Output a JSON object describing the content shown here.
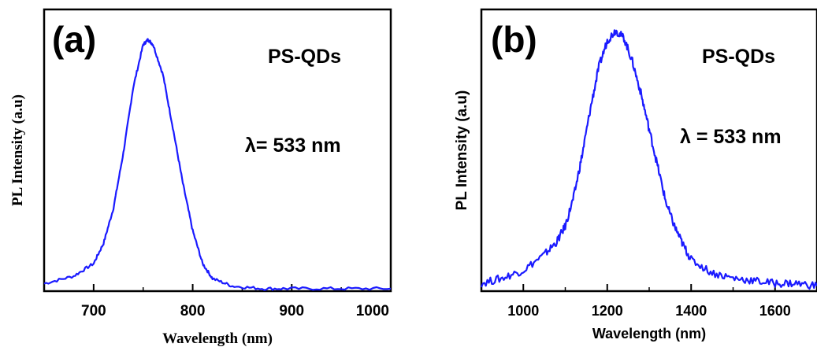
{
  "chart_data": [
    {
      "type": "line",
      "panel_label": "(a)",
      "sample_label": "PS-QDs",
      "excitation_label": "λ= 533 nm",
      "xlabel": "Wavelength (nm)",
      "ylabel": "PL Intensity (a.u)",
      "xlim": [
        650,
        1000
      ],
      "ylim": [
        0,
        1.12
      ],
      "x_ticks": [
        700,
        800,
        900,
        1000
      ],
      "x_tick_labels": [
        "700",
        "800",
        "900",
        "1000"
      ],
      "y_ticks_labeled": false,
      "grid": false,
      "line_color": "#1a1aff",
      "series": [
        {
          "x": [
            650,
            680,
            700,
            710,
            720,
            730,
            740,
            750,
            755,
            760,
            770,
            780,
            790,
            800,
            810,
            820,
            840,
            870,
            900,
            950,
            1000
          ],
          "values": [
            0.03,
            0.06,
            0.11,
            0.19,
            0.33,
            0.55,
            0.81,
            0.98,
            1.0,
            0.98,
            0.86,
            0.65,
            0.43,
            0.24,
            0.11,
            0.05,
            0.02,
            0.01,
            0.01,
            0.01,
            0.01
          ]
        }
      ]
    },
    {
      "type": "line",
      "panel_label": "(b)",
      "sample_label": "PS-QDs",
      "excitation_label": "λ = 533 nm",
      "xlabel": "Wavelength (nm)",
      "ylabel": "PL Intensity (a.u)",
      "xlim": [
        900,
        1700
      ],
      "ylim": [
        0,
        1.08
      ],
      "x_ticks": [
        1000,
        1200,
        1400,
        1600
      ],
      "x_tick_labels": [
        "1000",
        "1200",
        "1400",
        "1600"
      ],
      "y_ticks_labeled": false,
      "grid": false,
      "line_color": "#1a1aff",
      "series": [
        {
          "x": [
            900,
            950,
            1000,
            1050,
            1080,
            1100,
            1120,
            1140,
            1160,
            1180,
            1200,
            1220,
            1240,
            1260,
            1280,
            1300,
            1320,
            1340,
            1360,
            1380,
            1400,
            1450,
            1500,
            1550,
            1600,
            1650,
            1700
          ],
          "values": [
            0.03,
            0.05,
            0.08,
            0.14,
            0.19,
            0.25,
            0.36,
            0.52,
            0.7,
            0.86,
            0.96,
            1.0,
            0.97,
            0.88,
            0.76,
            0.62,
            0.48,
            0.34,
            0.25,
            0.18,
            0.12,
            0.07,
            0.05,
            0.04,
            0.03,
            0.03,
            0.02
          ]
        }
      ]
    }
  ]
}
